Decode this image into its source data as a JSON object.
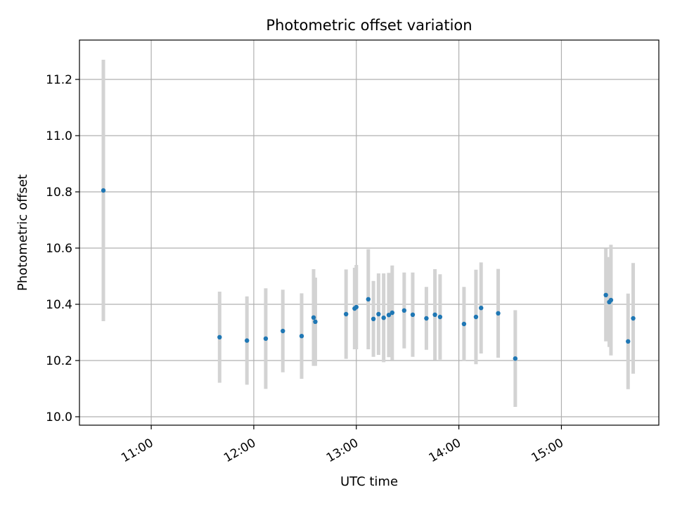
{
  "chart_data": {
    "type": "scatter",
    "title": "Photometric offset variation",
    "xlabel": "UTC time",
    "ylabel": "Photometric offset",
    "x_is_time": true,
    "xlim": [
      "10:18",
      "15:57"
    ],
    "ylim": [
      9.97,
      11.34
    ],
    "xticks": [
      "11:00",
      "12:00",
      "13:00",
      "14:00",
      "15:00"
    ],
    "yticks": [
      "10.0",
      "10.2",
      "10.4",
      "10.6",
      "10.8",
      "11.0",
      "11.2"
    ],
    "grid": true,
    "colors": {
      "point": "#1f77b4",
      "errorbar": "#d3d3d3",
      "grid": "#b0b0b0"
    },
    "points": [
      {
        "x": "10:32",
        "y": 10.805,
        "err": 0.465
      },
      {
        "x": "11:40",
        "y": 10.283,
        "err": 0.162
      },
      {
        "x": "11:56",
        "y": 10.271,
        "err": 0.157
      },
      {
        "x": "12:07",
        "y": 10.278,
        "err": 0.179
      },
      {
        "x": "12:17",
        "y": 10.305,
        "err": 0.147
      },
      {
        "x": "12:28",
        "y": 10.287,
        "err": 0.152
      },
      {
        "x": "12:35",
        "y": 10.353,
        "err": 0.172
      },
      {
        "x": "12:36",
        "y": 10.338,
        "err": 0.157
      },
      {
        "x": "12:54",
        "y": 10.365,
        "err": 0.159
      },
      {
        "x": "12:59",
        "y": 10.385,
        "err": 0.145
      },
      {
        "x": "13:00",
        "y": 10.39,
        "err": 0.15
      },
      {
        "x": "13:07",
        "y": 10.418,
        "err": 0.178
      },
      {
        "x": "13:10",
        "y": 10.348,
        "err": 0.135
      },
      {
        "x": "13:13",
        "y": 10.365,
        "err": 0.145
      },
      {
        "x": "13:16",
        "y": 10.352,
        "err": 0.158
      },
      {
        "x": "13:19",
        "y": 10.362,
        "err": 0.15
      },
      {
        "x": "13:21",
        "y": 10.37,
        "err": 0.168
      },
      {
        "x": "13:28",
        "y": 10.378,
        "err": 0.135
      },
      {
        "x": "13:33",
        "y": 10.363,
        "err": 0.15
      },
      {
        "x": "13:41",
        "y": 10.35,
        "err": 0.112
      },
      {
        "x": "13:46",
        "y": 10.363,
        "err": 0.162
      },
      {
        "x": "13:49",
        "y": 10.355,
        "err": 0.152
      },
      {
        "x": "14:03",
        "y": 10.33,
        "err": 0.132
      },
      {
        "x": "14:10",
        "y": 10.355,
        "err": 0.168
      },
      {
        "x": "14:13",
        "y": 10.387,
        "err": 0.162
      },
      {
        "x": "14:23",
        "y": 10.368,
        "err": 0.158
      },
      {
        "x": "14:33",
        "y": 10.207,
        "err": 0.172
      },
      {
        "x": "15:26",
        "y": 10.433,
        "err": 0.165
      },
      {
        "x": "15:28",
        "y": 10.408,
        "err": 0.16
      },
      {
        "x": "15:29",
        "y": 10.415,
        "err": 0.197
      },
      {
        "x": "15:39",
        "y": 10.268,
        "err": 0.17
      },
      {
        "x": "15:42",
        "y": 10.35,
        "err": 0.197
      }
    ]
  }
}
